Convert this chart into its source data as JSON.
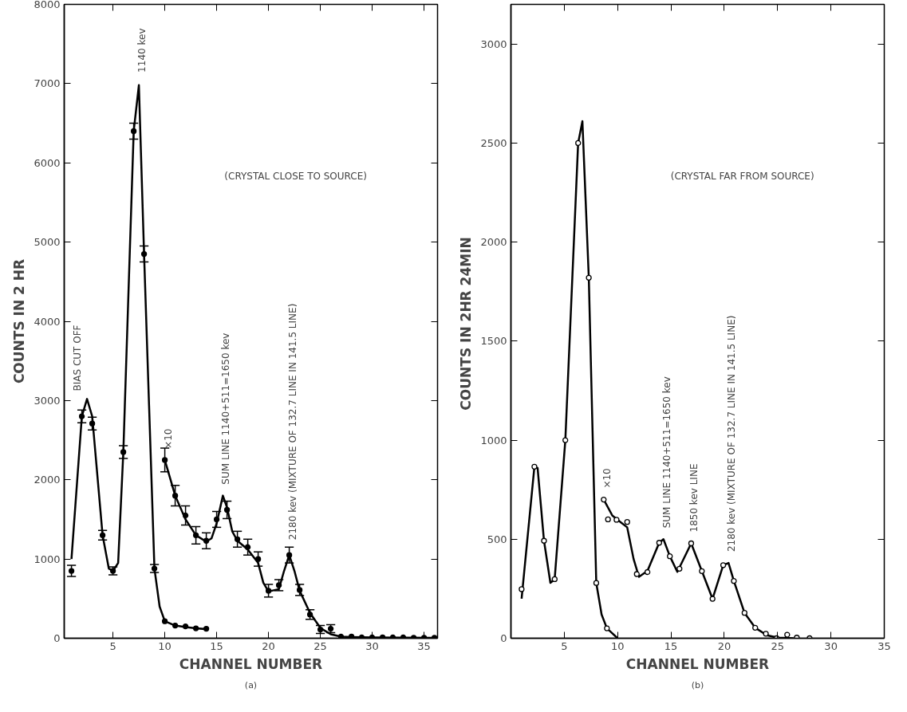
{
  "chart_data": [
    {
      "type": "line",
      "title": "(a)",
      "xlabel": "CHANNEL NUMBER",
      "ylabel": "COUNTS IN 2 HR",
      "xlim": [
        0.3,
        36.3
      ],
      "ylim": [
        0,
        8000
      ],
      "xticks": [
        5,
        10,
        15,
        20,
        25,
        30,
        35
      ],
      "yticks": [
        0,
        1000,
        2000,
        3000,
        4000,
        5000,
        6000,
        7000,
        8000
      ],
      "series": [
        {
          "color": "#000000",
          "x": [
            1,
            2,
            2.5,
            3,
            4,
            4.6,
            5,
            5.5,
            6,
            7,
            7.5,
            8,
            9,
            9.5,
            10,
            11,
            12,
            13,
            14
          ],
          "values": [
            1000,
            2800,
            3020,
            2800,
            1300,
            880,
            850,
            950,
            2350,
            6400,
            6980,
            4850,
            880,
            400,
            215,
            160,
            140,
            125,
            115
          ]
        },
        {
          "color": "#000000",
          "x": [
            10,
            11,
            12,
            13,
            14,
            14.5,
            15,
            15.6,
            16,
            16.5,
            17,
            18,
            19,
            19.5,
            20,
            21,
            21.5,
            22,
            22.5,
            23,
            24,
            25,
            26,
            27,
            28,
            30,
            33,
            36
          ],
          "values": [
            2250,
            1800,
            1500,
            1300,
            1220,
            1260,
            1450,
            1800,
            1650,
            1350,
            1230,
            1120,
            950,
            700,
            590,
            620,
            850,
            1050,
            850,
            600,
            320,
            130,
            50,
            20,
            15,
            10,
            8,
            5
          ]
        },
        {
          "type": "scatter",
          "marker": "circle",
          "color": "#000000",
          "x": [
            1,
            2,
            3,
            4,
            5,
            6,
            7,
            8,
            9,
            10,
            11,
            12,
            13,
            14
          ],
          "values": [
            850,
            2800,
            2710,
            1300,
            850,
            2350,
            6400,
            4850,
            880,
            215,
            160,
            150,
            125,
            120
          ],
          "errors": [
            70,
            80,
            80,
            60,
            50,
            80,
            100,
            100,
            50,
            null,
            null,
            null,
            null,
            null
          ]
        },
        {
          "type": "scatter",
          "marker": "circle",
          "color": "#000000",
          "x": [
            10,
            11,
            12,
            13,
            14,
            15,
            16,
            17,
            18,
            19,
            20,
            21,
            22,
            23,
            24,
            25,
            26,
            27,
            28,
            29,
            30,
            31,
            32,
            33,
            34,
            35,
            36
          ],
          "values": [
            2250,
            1800,
            1550,
            1300,
            1230,
            1500,
            1620,
            1250,
            1150,
            1000,
            600,
            670,
            1050,
            610,
            300,
            110,
            120,
            20,
            20,
            10,
            10,
            10,
            10,
            10,
            5,
            5,
            5
          ],
          "errors": [
            150,
            130,
            120,
            110,
            100,
            100,
            110,
            100,
            100,
            90,
            80,
            70,
            100,
            70,
            60,
            50,
            50,
            null,
            null,
            null,
            null,
            null,
            null,
            null,
            null,
            null,
            null
          ]
        }
      ],
      "annotations": [
        "(CRYSTAL CLOSE TO SOURCE)",
        {
          "text": "1140 kev",
          "x": 7.5,
          "y": 7000
        },
        "BIAS CUT OFF",
        {
          "text": "×10",
          "x": 10,
          "y": 2250
        },
        {
          "text": "SUM LINE 1140+511=1650 kev",
          "x": 15.6,
          "y": 1800
        },
        {
          "text": "2180 kev (MIXTURE OF 132.7 LINE IN 141.5 LINE)",
          "x": 22,
          "y": 1100
        }
      ]
    },
    {
      "type": "line",
      "title": "(b)",
      "xlabel": "CHANNEL NUMBER",
      "ylabel": "COUNTS IN 2HR  24MIN",
      "xlim": [
        0,
        35
      ],
      "ylim": [
        0,
        3200
      ],
      "xticks": [
        5,
        10,
        15,
        20,
        25,
        30,
        35
      ],
      "yticks": [
        0,
        500,
        1000,
        1500,
        2000,
        2500,
        3000
      ],
      "series": [
        {
          "color": "#000000",
          "x": [
            1,
            2.2,
            2.5,
            3.1,
            3.7,
            4.1,
            5.1,
            6.3,
            6.7,
            7.3,
            8,
            8.5,
            9,
            10
          ],
          "values": [
            200,
            866,
            860,
            492,
            280,
            298,
            1000,
            2500,
            2610,
            1820,
            279,
            120,
            50,
            0
          ]
        },
        {
          "color": "#000000",
          "x": [
            8.7,
            9.5,
            10,
            10.9,
            11.5,
            12,
            12.8,
            13.9,
            14.3,
            14.9,
            15.6,
            16.9,
            17.9,
            18.9,
            19.9,
            20.4,
            20.9,
            21.9,
            22.9,
            24,
            25,
            26.5
          ],
          "values": [
            700,
            620,
            598,
            560,
            400,
            310,
            340,
            482,
            500,
            414,
            335,
            479,
            339,
            199,
            369,
            380,
            289,
            128,
            53,
            15,
            3,
            0
          ]
        },
        {
          "type": "scatter",
          "marker": "circle",
          "color": "#000000",
          "x": [
            1,
            2.2,
            3.1,
            4.1,
            5.1,
            6.3,
            7.3,
            8,
            9
          ],
          "values": [
            248,
            866,
            492,
            298,
            1000,
            2500,
            1820,
            279,
            50
          ]
        },
        {
          "type": "scatter",
          "marker": "circle",
          "color": "#000000",
          "x": [
            8.7,
            9.1,
            9.9,
            10.9,
            11.8,
            12.8,
            13.9,
            14.9,
            15.8,
            16.9,
            17.9,
            18.9,
            19.9,
            20.9,
            21.9,
            22.9,
            23.9,
            24.9,
            25.9,
            26.8,
            28
          ],
          "values": [
            700,
            600,
            598,
            587,
            324,
            334,
            482,
            414,
            351,
            479,
            339,
            199,
            369,
            289,
            128,
            53,
            23,
            0,
            18,
            3,
            0
          ]
        }
      ],
      "annotations": [
        "(CRYSTAL FAR FROM SOURCE)",
        {
          "text": "×10",
          "x": 8.7,
          "y": 700
        },
        {
          "text": "SUM LINE 1140+511=1650 kev",
          "x": 14.3,
          "y": 500
        },
        {
          "text": "1850 kev LINE",
          "x": 16.9,
          "y": 479
        },
        {
          "text": "2180 kev (MIXTURE OF 132.7 LINE IN 141.5 LINE)",
          "x": 20.4,
          "y": 380
        }
      ]
    }
  ]
}
